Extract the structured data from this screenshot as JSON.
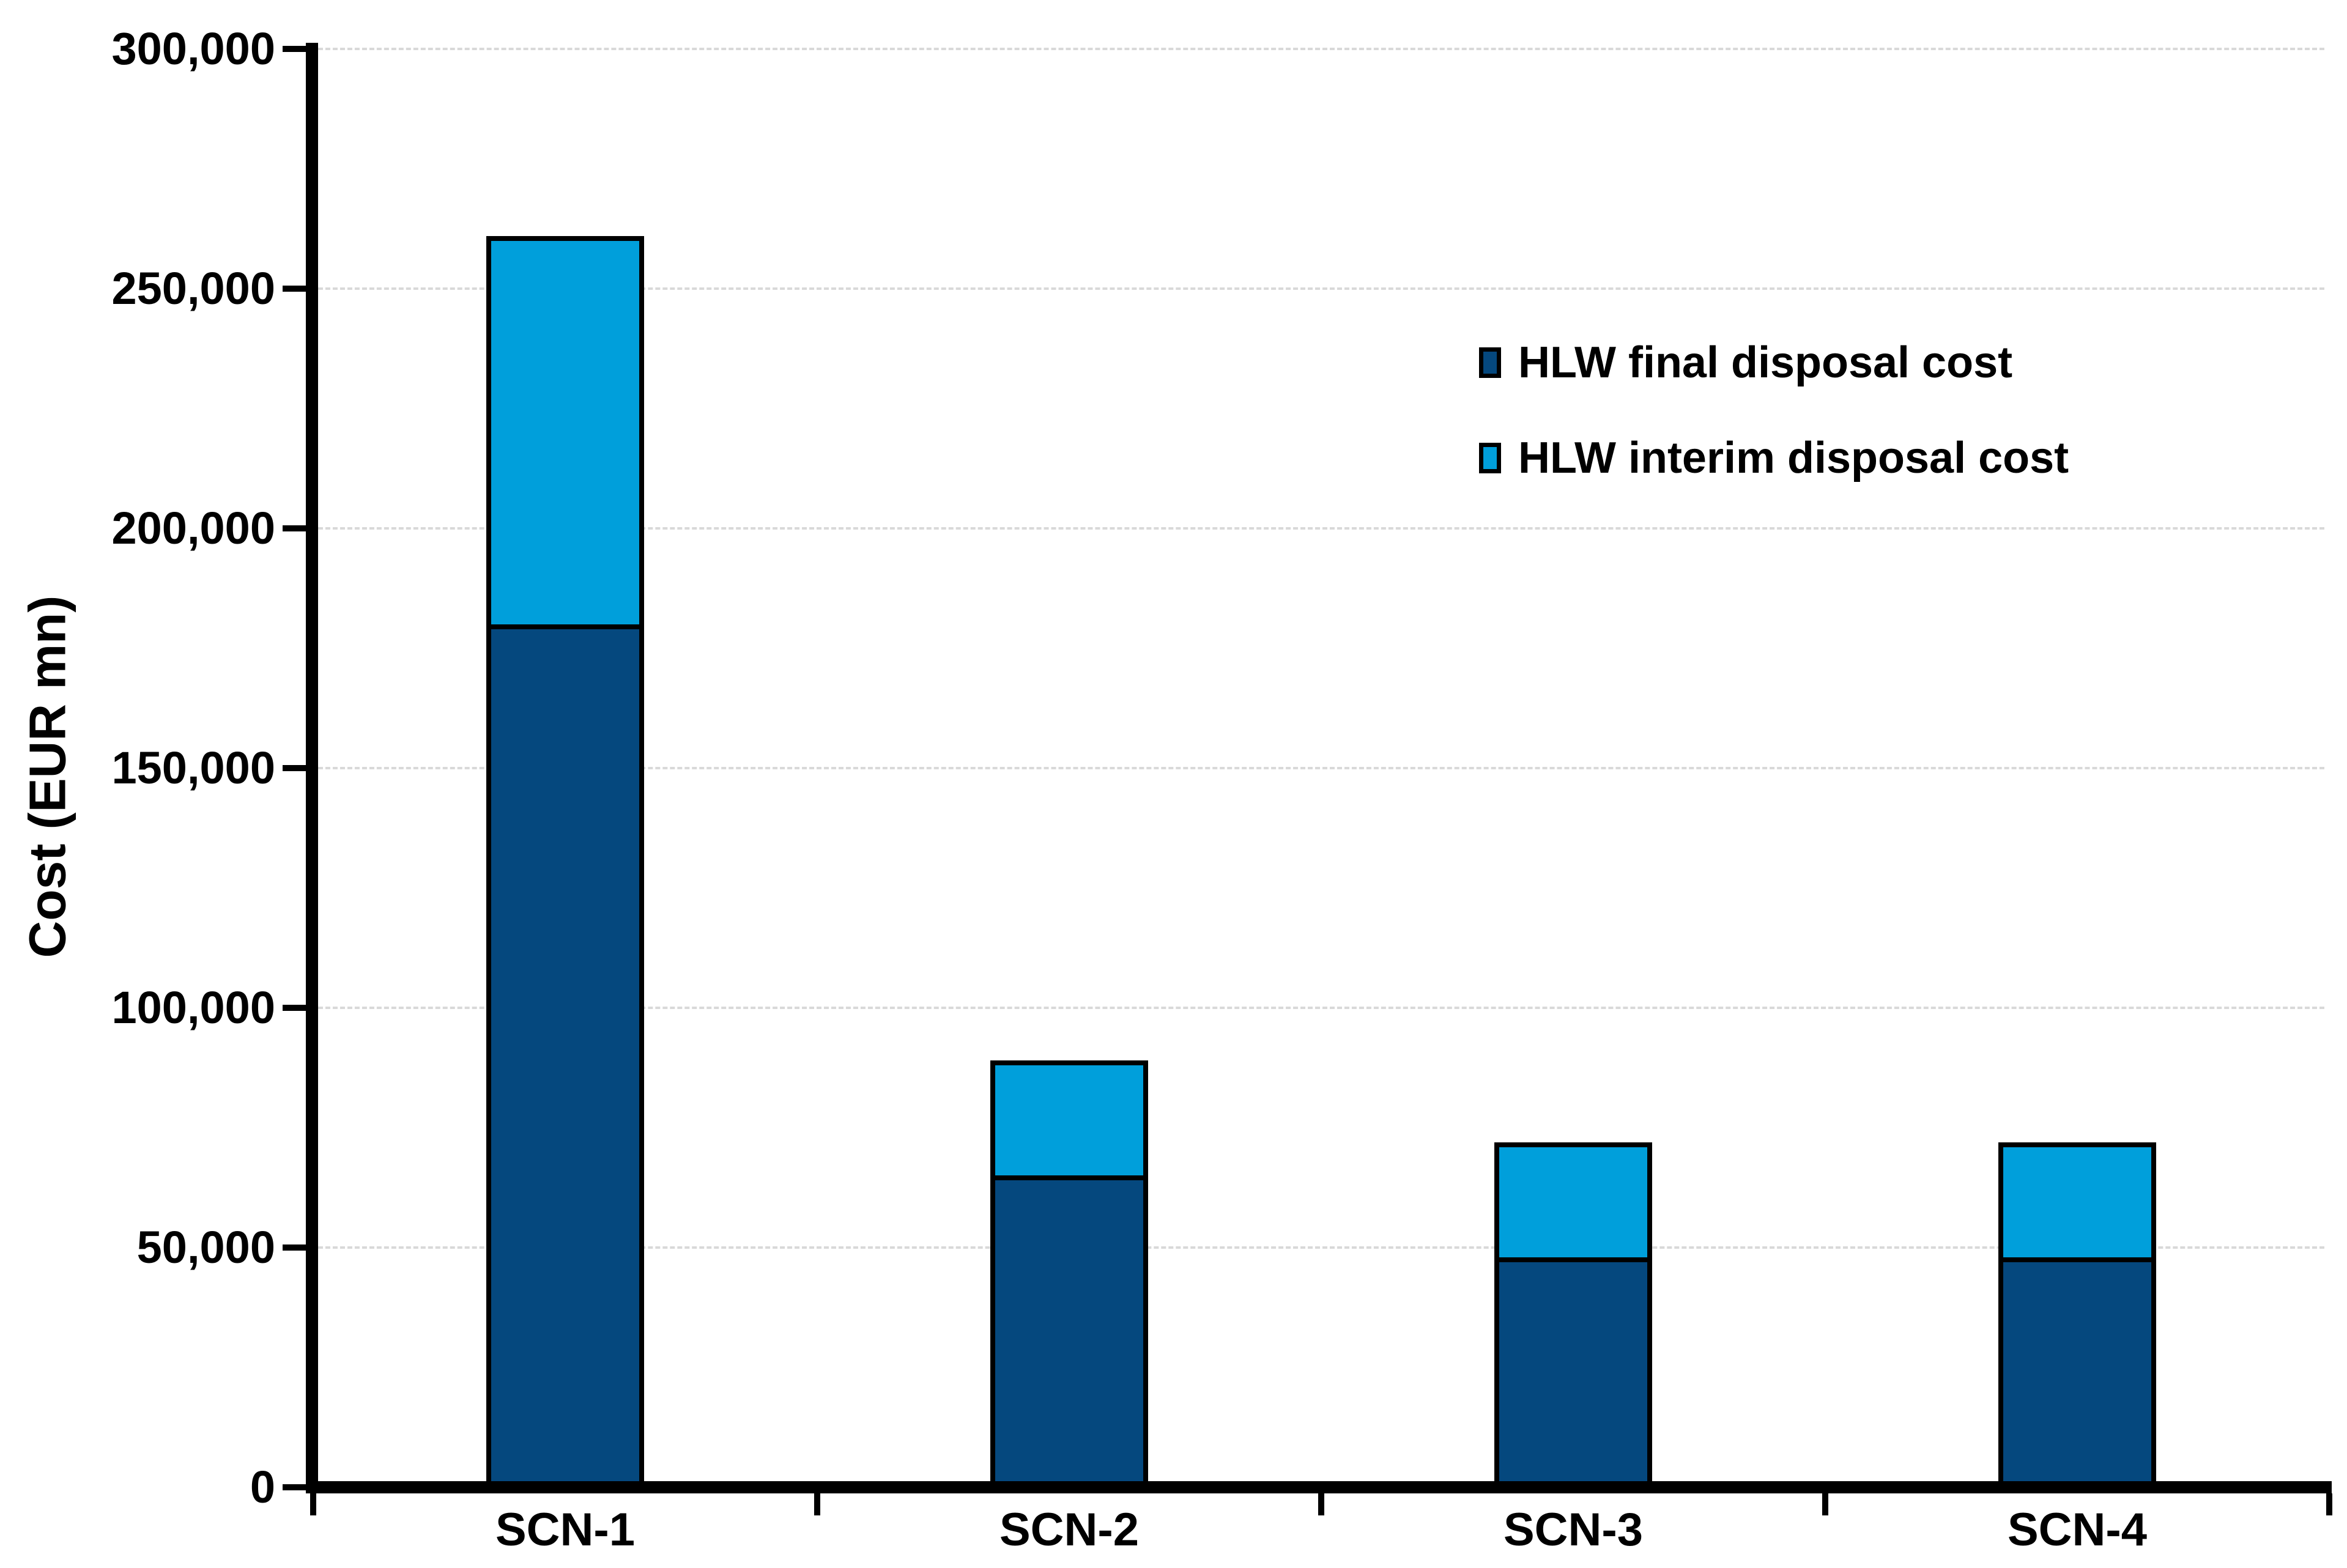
{
  "chart_data": {
    "type": "bar",
    "stacked": true,
    "title": "",
    "ylabel": "Cost (EUR mn)",
    "xlabel": "",
    "categories": [
      "SCN-1",
      "SCN-2",
      "SCN-3",
      "SCN-4"
    ],
    "series": [
      {
        "name": "HLW final disposal cost",
        "color": "#05487E",
        "values": [
          180000,
          65000,
          48000,
          48000
        ]
      },
      {
        "name": "HLW interim disposal cost",
        "color": "#009FDB",
        "values": [
          81000,
          24000,
          24000,
          24000
        ]
      }
    ],
    "stacked_totals": [
      261000,
      89000,
      72000,
      72000
    ],
    "ylim": [
      0,
      300000
    ],
    "yticks": [
      0,
      50000,
      100000,
      150000,
      200000,
      250000,
      300000
    ],
    "ytick_labels": [
      "0",
      "50,000",
      "100,000",
      "150,000",
      "200,000",
      "250,000",
      "300,000"
    ],
    "grid": true,
    "gridline_color": "#D9D9D9",
    "axis_color": "#000000",
    "bar_border_color": "#000000",
    "legend_position": "upper-right"
  }
}
